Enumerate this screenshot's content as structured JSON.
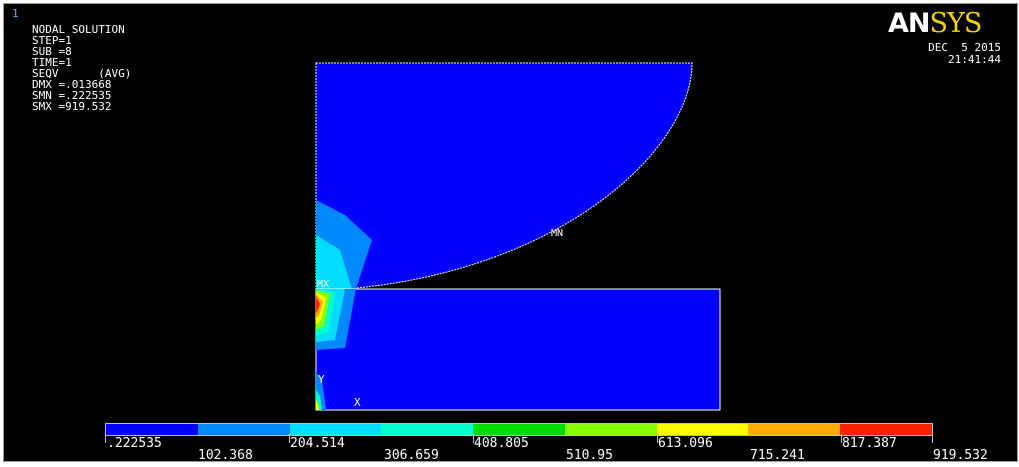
{
  "window_number": "1",
  "info_lines": [
    "NODAL SOLUTION",
    "",
    "STEP=1",
    "SUB =8",
    "TIME=1",
    "SEQV      (AVG)",
    "DMX =.013668",
    "SMN =.222535",
    "SMX =919.532"
  ],
  "logo": {
    "an": "AN",
    "sys": "SYS"
  },
  "date": "DEC  5 2015",
  "time": "21:41:44",
  "markers": {
    "mn": "MN",
    "mx": "MX",
    "y_axis": "Y",
    "x_axis": "X"
  },
  "colors": {
    "background": "#000000",
    "contour_bands": [
      "#0000ff",
      "#0088ff",
      "#00ddff",
      "#00ffcc",
      "#00dd00",
      "#88ff00",
      "#ffff00",
      "#ffaa00",
      "#ff2200"
    ]
  },
  "legend": {
    "upper_labels": [
      ".222535",
      "204.514",
      "408.805",
      "613.096",
      "817.387"
    ],
    "lower_labels": [
      "102.368",
      "306.659",
      "510.95",
      "715.241",
      "919.532"
    ]
  }
}
